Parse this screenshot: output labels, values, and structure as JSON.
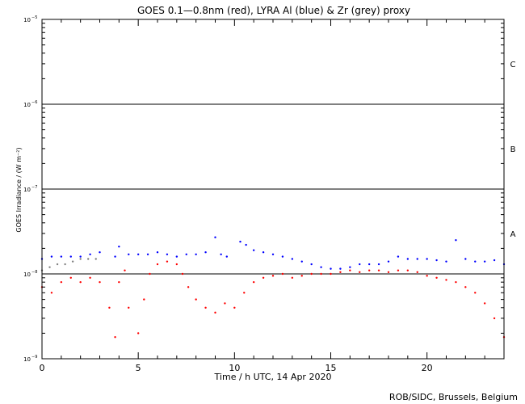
{
  "chart_data": {
    "type": "scatter",
    "title": "GOES 0.1—0.8nm (red), LYRA Al (blue) & Zr (grey) proxy",
    "xlabel": "Time / h UTC, 14 Apr 2020",
    "ylabel": "GOES Irradiance / (W m⁻²)",
    "xlim": [
      0,
      24
    ],
    "ylim": [
      1e-09,
      1e-05
    ],
    "y_scale": "log",
    "x_ticks": [
      0,
      5,
      10,
      15,
      20
    ],
    "y_ticks": [
      {
        "value": 1e-09,
        "base": "10",
        "exp": "−9"
      },
      {
        "value": 1e-08,
        "base": "10",
        "exp": "−8"
      },
      {
        "value": 1e-07,
        "base": "10",
        "exp": "−7"
      },
      {
        "value": 1e-06,
        "base": "10",
        "exp": "−6"
      },
      {
        "value": 1e-05,
        "base": "10",
        "exp": "−5"
      }
    ],
    "class_lines": [
      1e-08,
      1e-07,
      1e-06
    ],
    "flare_classes": [
      {
        "label": "A",
        "value": 3e-08
      },
      {
        "label": "B",
        "value": 3e-07
      },
      {
        "label": "C",
        "value": 3e-06
      }
    ],
    "series": [
      {
        "color": "#ff0000",
        "points": [
          [
            0.0,
            7e-09
          ],
          [
            0.5,
            6e-09
          ],
          [
            1.0,
            8e-09
          ],
          [
            1.5,
            9e-09
          ],
          [
            2.0,
            8e-09
          ],
          [
            2.5,
            9e-09
          ],
          [
            3.0,
            8e-09
          ],
          [
            3.5,
            4e-09
          ],
          [
            3.8,
            1.8e-09
          ],
          [
            4.0,
            8e-09
          ],
          [
            4.3,
            1.1e-08
          ],
          [
            4.5,
            4e-09
          ],
          [
            5.0,
            2e-09
          ],
          [
            5.3,
            5e-09
          ],
          [
            5.6,
            1e-08
          ],
          [
            6.0,
            1.3e-08
          ],
          [
            6.5,
            1.4e-08
          ],
          [
            7.0,
            1.3e-08
          ],
          [
            7.3,
            1e-08
          ],
          [
            7.6,
            7e-09
          ],
          [
            8.0,
            5e-09
          ],
          [
            8.5,
            4e-09
          ],
          [
            9.0,
            3.5e-09
          ],
          [
            9.5,
            4.5e-09
          ],
          [
            10.0,
            4e-09
          ],
          [
            10.5,
            6e-09
          ],
          [
            11.0,
            8e-09
          ],
          [
            11.5,
            9e-09
          ],
          [
            12.0,
            9.5e-09
          ],
          [
            12.5,
            1e-08
          ],
          [
            13.0,
            9e-09
          ],
          [
            13.5,
            9.5e-09
          ],
          [
            14.0,
            1e-08
          ],
          [
            14.5,
            1e-08
          ],
          [
            15.0,
            1e-08
          ],
          [
            15.5,
            1.05e-08
          ],
          [
            16.0,
            1.1e-08
          ],
          [
            16.5,
            1.05e-08
          ],
          [
            17.0,
            1.1e-08
          ],
          [
            17.5,
            1.1e-08
          ],
          [
            18.0,
            1.05e-08
          ],
          [
            18.5,
            1.1e-08
          ],
          [
            19.0,
            1.1e-08
          ],
          [
            19.5,
            1.05e-08
          ],
          [
            20.0,
            9.5e-09
          ],
          [
            20.5,
            9e-09
          ],
          [
            21.0,
            8.5e-09
          ],
          [
            21.5,
            8e-09
          ],
          [
            22.0,
            7e-09
          ],
          [
            22.5,
            6e-09
          ],
          [
            23.0,
            4.5e-09
          ],
          [
            23.5,
            3e-09
          ],
          [
            24.0,
            1.8e-09
          ]
        ]
      },
      {
        "color": "#0000ff",
        "points": [
          [
            0.0,
            1.5e-08
          ],
          [
            0.5,
            1.6e-08
          ],
          [
            1.0,
            1.6e-08
          ],
          [
            1.5,
            1.6e-08
          ],
          [
            2.0,
            1.6e-08
          ],
          [
            2.5,
            1.7e-08
          ],
          [
            3.0,
            1.8e-08
          ],
          [
            3.8,
            1.6e-08
          ],
          [
            4.0,
            2.1e-08
          ],
          [
            4.5,
            1.7e-08
          ],
          [
            5.0,
            1.7e-08
          ],
          [
            5.5,
            1.7e-08
          ],
          [
            6.0,
            1.8e-08
          ],
          [
            6.5,
            1.7e-08
          ],
          [
            7.0,
            1.6e-08
          ],
          [
            7.5,
            1.7e-08
          ],
          [
            8.0,
            1.7e-08
          ],
          [
            8.5,
            1.8e-08
          ],
          [
            9.0,
            2.7e-08
          ],
          [
            9.3,
            1.7e-08
          ],
          [
            9.6,
            1.6e-08
          ],
          [
            10.3,
            2.4e-08
          ],
          [
            10.6,
            2.2e-08
          ],
          [
            11.0,
            1.9e-08
          ],
          [
            11.5,
            1.8e-08
          ],
          [
            12.0,
            1.7e-08
          ],
          [
            12.5,
            1.6e-08
          ],
          [
            13.0,
            1.5e-08
          ],
          [
            13.5,
            1.4e-08
          ],
          [
            14.0,
            1.3e-08
          ],
          [
            14.5,
            1.2e-08
          ],
          [
            15.0,
            1.15e-08
          ],
          [
            15.5,
            1.15e-08
          ],
          [
            16.0,
            1.2e-08
          ],
          [
            16.5,
            1.3e-08
          ],
          [
            17.0,
            1.3e-08
          ],
          [
            17.5,
            1.3e-08
          ],
          [
            18.0,
            1.4e-08
          ],
          [
            18.5,
            1.6e-08
          ],
          [
            19.0,
            1.5e-08
          ],
          [
            19.5,
            1.5e-08
          ],
          [
            20.0,
            1.5e-08
          ],
          [
            20.5,
            1.45e-08
          ],
          [
            21.0,
            1.4e-08
          ],
          [
            21.5,
            2.5e-08
          ],
          [
            22.0,
            1.5e-08
          ],
          [
            22.5,
            1.4e-08
          ],
          [
            23.0,
            1.4e-08
          ],
          [
            23.5,
            1.45e-08
          ],
          [
            24.0,
            1.3e-08
          ]
        ]
      },
      {
        "color": "#808080",
        "points": [
          [
            0.0,
            1.1e-08
          ],
          [
            0.4,
            1.2e-08
          ],
          [
            0.8,
            1.3e-08
          ],
          [
            1.2,
            1.3e-08
          ],
          [
            1.6,
            1.4e-08
          ],
          [
            2.0,
            1.5e-08
          ],
          [
            2.4,
            1.5e-08
          ],
          [
            2.8,
            1.5e-08
          ]
        ]
      }
    ]
  },
  "credit": "ROB/SIDC, Brussels, Belgium"
}
